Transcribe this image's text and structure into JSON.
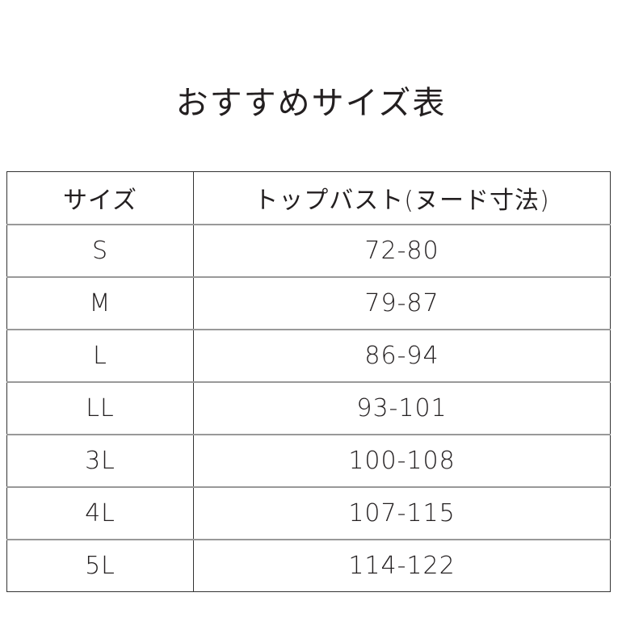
{
  "title": "おすすめサイズ表",
  "table": {
    "headers": [
      "サイズ",
      "トップバスト(ヌード寸法)"
    ],
    "rows": [
      [
        "S",
        "72-80"
      ],
      [
        "M",
        "79-87"
      ],
      [
        "L",
        "86-94"
      ],
      [
        "LL",
        "93-101"
      ],
      [
        "3L",
        "100-108"
      ],
      [
        "4L",
        "107-115"
      ],
      [
        "5L",
        "114-122"
      ]
    ]
  }
}
